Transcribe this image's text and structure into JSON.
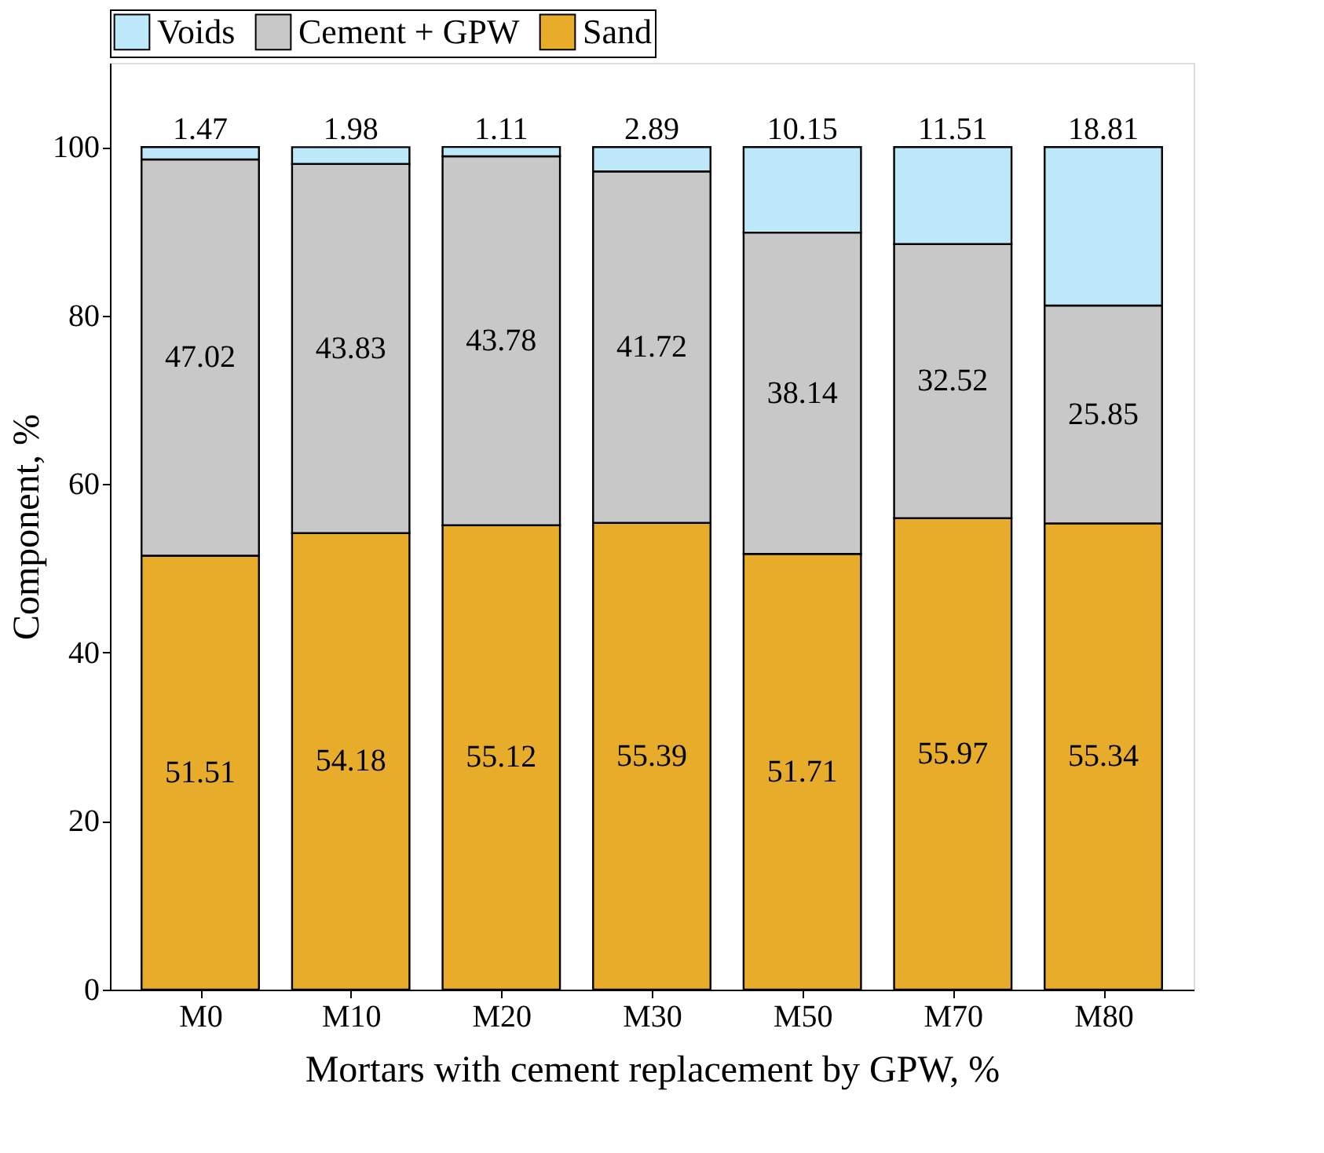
{
  "chart_data": {
    "type": "bar",
    "stacked": true,
    "xlabel": "Mortars with cement replacement by GPW, %",
    "ylabel": "Component, %",
    "categories": [
      "M0",
      "M10",
      "M20",
      "M30",
      "M50",
      "M70",
      "M80"
    ],
    "series": [
      {
        "name": "Sand",
        "color": "#e6ac2a",
        "values": [
          51.51,
          54.18,
          55.12,
          55.39,
          51.71,
          55.97,
          55.34
        ]
      },
      {
        "name": "Cement + GPW",
        "color": "#c8c8c8",
        "values": [
          47.02,
          43.83,
          43.78,
          41.72,
          38.14,
          32.52,
          25.85
        ]
      },
      {
        "name": "Voids",
        "color": "#bde8fa",
        "values": [
          1.47,
          1.98,
          1.11,
          2.89,
          10.15,
          11.51,
          18.81
        ]
      }
    ],
    "ylim": [
      0,
      110
    ],
    "yticks": [
      0,
      20,
      40,
      60,
      80,
      100
    ],
    "grid": false,
    "legend": "top",
    "data_labels": true
  }
}
